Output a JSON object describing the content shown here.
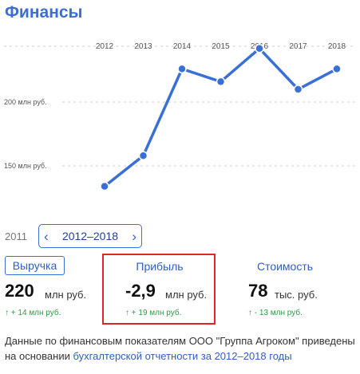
{
  "header": {
    "title": "Финансы"
  },
  "chart_data": {
    "type": "line",
    "x": [
      "2012",
      "2013",
      "2014",
      "2015",
      "2016",
      "2017",
      "2018"
    ],
    "y_tick_labels": [
      "200 млн руб.",
      "150 млн руб."
    ],
    "y_ticks": [
      200,
      150
    ],
    "series": [
      {
        "values": [
          134,
          158,
          226,
          216,
          242,
          210,
          226
        ]
      }
    ],
    "ylim": [
      120,
      300
    ],
    "grid": true,
    "line_color": "#3b6fd8"
  },
  "period": {
    "prev_year": "2011",
    "range_label": "2012–2018",
    "prev_icon": "chevron-left-icon",
    "next_icon": "chevron-right-icon"
  },
  "metrics": {
    "revenue": {
      "label": "Выручка",
      "value": "220",
      "unit": "млн руб.",
      "delta": "↑ + 14 млн руб."
    },
    "profit": {
      "label": "Прибыль",
      "value": "-2,9",
      "unit": "млн руб.",
      "delta": "↑ + 19 млн руб."
    },
    "cost": {
      "label": "Стоимость",
      "value": "78",
      "unit": "тыс. руб.",
      "delta": "↑ - 13 млн руб."
    }
  },
  "footer": {
    "text": "Данные по финансовым показателям ООО \"Группа Агроком\" приведены на основании ",
    "link": "бухгалтерской отчетности за 2012–2018 годы"
  },
  "colors": {
    "accent": "#3b6fd8",
    "positive": "#2e9b45",
    "highlight": "#e0242b"
  }
}
